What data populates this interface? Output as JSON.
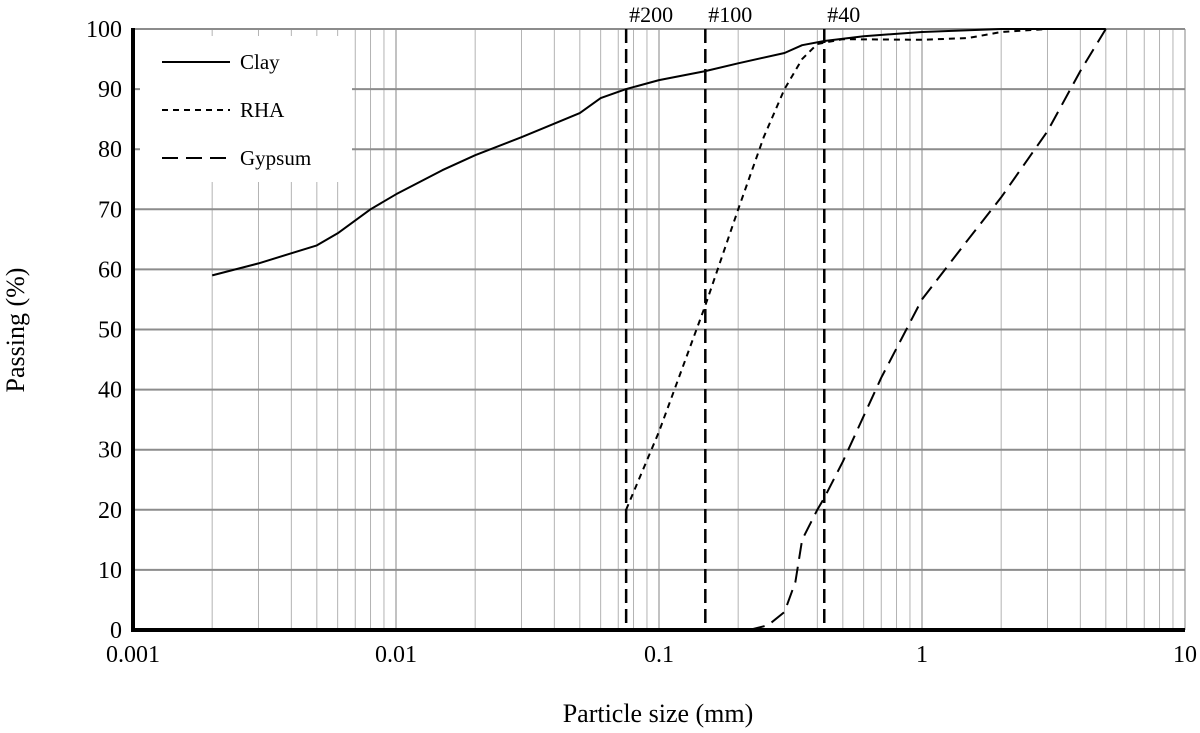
{
  "chart_data": {
    "type": "line",
    "xlabel": "Particle size (mm)",
    "ylabel": "Passing (%)",
    "x_scale": "log",
    "xlim": [
      0.001,
      10
    ],
    "ylim": [
      0,
      100
    ],
    "grid": true,
    "legend_position": "top-left",
    "x_ticks": [
      {
        "value": 0.001,
        "label": "0.001"
      },
      {
        "value": 0.01,
        "label": "0.01"
      },
      {
        "value": 0.1,
        "label": "0.1"
      },
      {
        "value": 1,
        "label": "1"
      },
      {
        "value": 10,
        "label": "10"
      }
    ],
    "y_ticks": [
      {
        "value": 0,
        "label": "0"
      },
      {
        "value": 10,
        "label": "10"
      },
      {
        "value": 20,
        "label": "20"
      },
      {
        "value": 30,
        "label": "30"
      },
      {
        "value": 40,
        "label": "40"
      },
      {
        "value": 50,
        "label": "50"
      },
      {
        "value": 60,
        "label": "60"
      },
      {
        "value": 70,
        "label": "70"
      },
      {
        "value": 80,
        "label": "80"
      },
      {
        "value": 90,
        "label": "90"
      },
      {
        "value": 100,
        "label": "100"
      }
    ],
    "sieves": [
      {
        "label": "#200",
        "size": 0.075
      },
      {
        "label": "#100",
        "size": 0.15
      },
      {
        "label": "#40",
        "size": 0.425
      }
    ],
    "series": [
      {
        "name": "Clay",
        "style": "solid",
        "points": [
          [
            0.002,
            59
          ],
          [
            0.003,
            61
          ],
          [
            0.005,
            64
          ],
          [
            0.006,
            66
          ],
          [
            0.008,
            70
          ],
          [
            0.01,
            72.5
          ],
          [
            0.015,
            76.5
          ],
          [
            0.02,
            79
          ],
          [
            0.03,
            82
          ],
          [
            0.05,
            86
          ],
          [
            0.06,
            88.5
          ],
          [
            0.075,
            90
          ],
          [
            0.1,
            91.5
          ],
          [
            0.15,
            93
          ],
          [
            0.2,
            94.3
          ],
          [
            0.3,
            96
          ],
          [
            0.35,
            97.3
          ],
          [
            0.425,
            98
          ],
          [
            0.6,
            98.8
          ],
          [
            1,
            99.5
          ],
          [
            2,
            100
          ],
          [
            5,
            100
          ]
        ]
      },
      {
        "name": "RHA",
        "style": "short-dash",
        "points": [
          [
            0.075,
            20
          ],
          [
            0.1,
            33
          ],
          [
            0.15,
            54
          ],
          [
            0.2,
            70
          ],
          [
            0.25,
            82
          ],
          [
            0.3,
            90
          ],
          [
            0.35,
            95
          ],
          [
            0.4,
            97.5
          ],
          [
            0.5,
            98.3
          ],
          [
            1,
            98.2
          ],
          [
            1.5,
            98.5
          ],
          [
            2,
            99.5
          ],
          [
            3,
            100
          ]
        ]
      },
      {
        "name": "Gypsum",
        "style": "long-dash",
        "points": [
          [
            0.22,
            0
          ],
          [
            0.26,
            0.8
          ],
          [
            0.3,
            3
          ],
          [
            0.33,
            8
          ],
          [
            0.35,
            15
          ],
          [
            0.4,
            20
          ],
          [
            0.425,
            22
          ],
          [
            0.5,
            28
          ],
          [
            0.7,
            42
          ],
          [
            1,
            55
          ],
          [
            1.5,
            65
          ],
          [
            2,
            72
          ],
          [
            3,
            83
          ],
          [
            4,
            93
          ],
          [
            5,
            100
          ]
        ]
      }
    ]
  }
}
